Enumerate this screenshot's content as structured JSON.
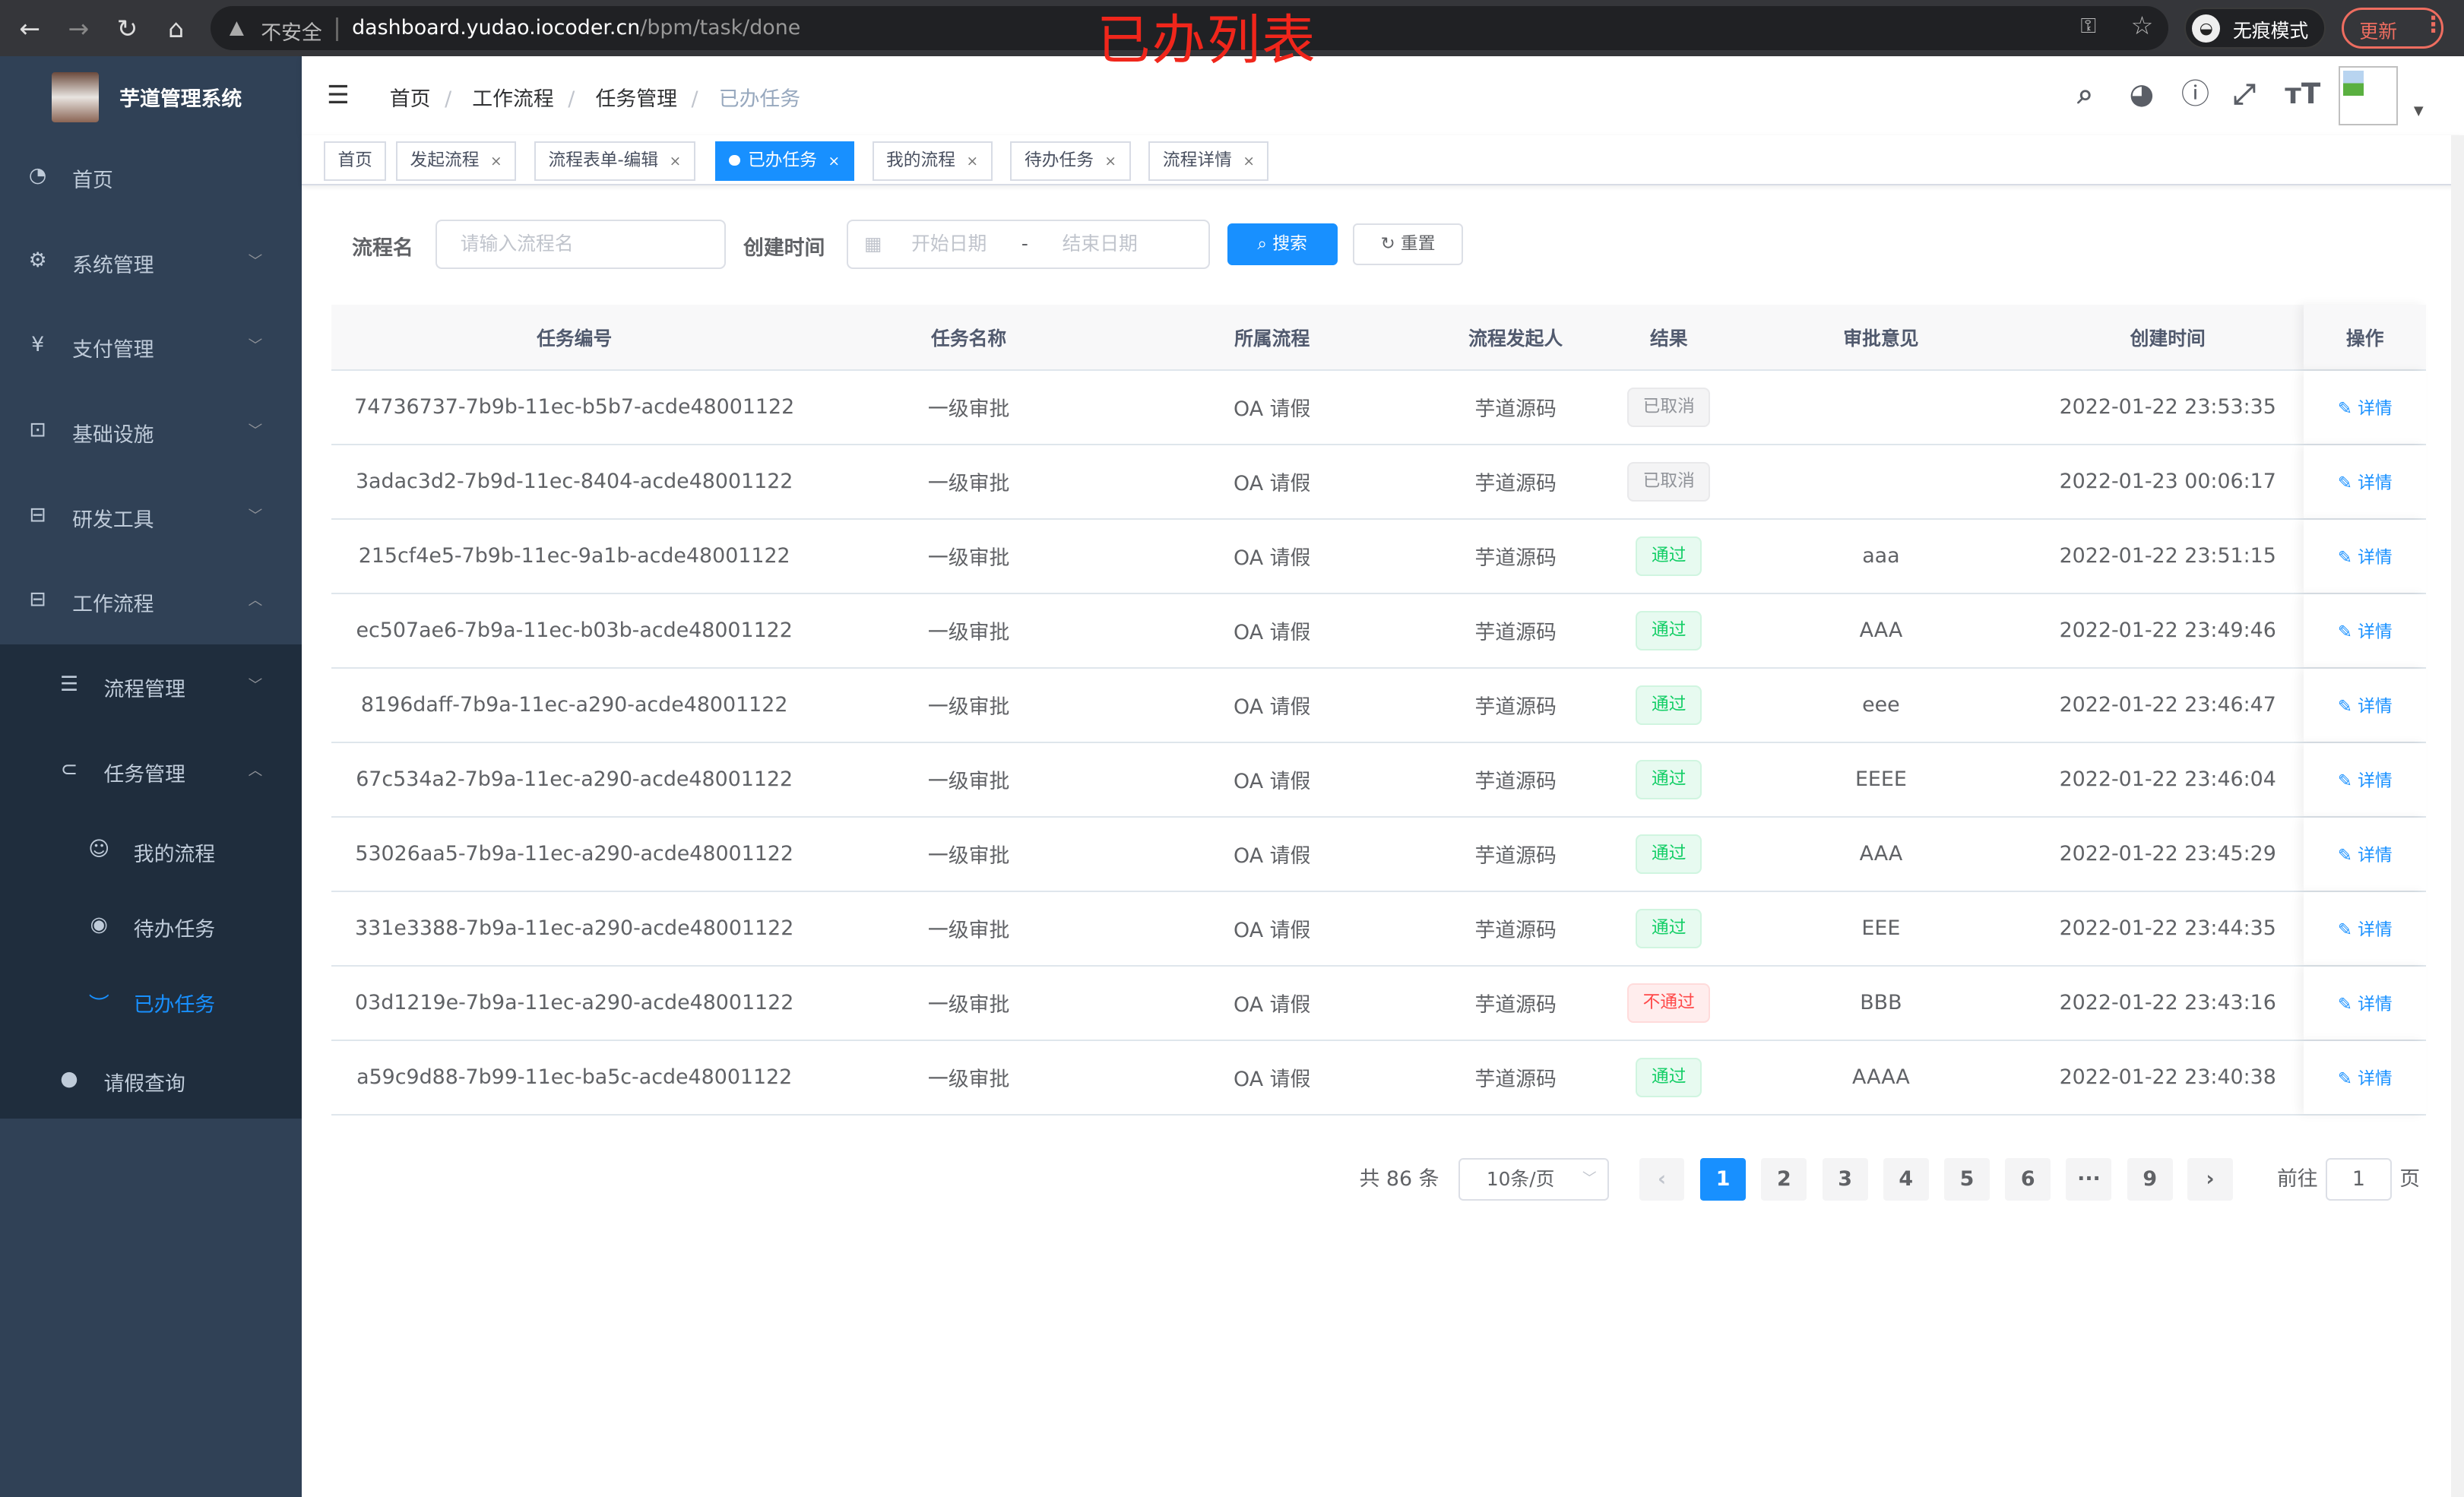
{
  "browser": {
    "insecure_label": "不安全",
    "url_host": "dashboard.yudao.iocoder.cn",
    "url_path": "/bpm/task/done",
    "incognito_label": "无痕模式",
    "update_label": "更新"
  },
  "annotation_title": "已办列表",
  "app": {
    "title": "芋道管理系统"
  },
  "sidebar": {
    "items": [
      {
        "label": "首页",
        "icon": "dashboard-icon",
        "glyph": "◔"
      },
      {
        "label": "系统管理",
        "icon": "gear-icon",
        "glyph": "⚙",
        "arrow": "﹀"
      },
      {
        "label": "支付管理",
        "icon": "yen-icon",
        "glyph": "¥",
        "arrow": "﹀"
      },
      {
        "label": "基础设施",
        "icon": "monitor-icon",
        "glyph": "⊡",
        "arrow": "﹀"
      },
      {
        "label": "研发工具",
        "icon": "toolbox-icon",
        "glyph": "⊟",
        "arrow": "﹀"
      },
      {
        "label": "工作流程",
        "icon": "toolbox-icon",
        "glyph": "⊟",
        "arrow": "︿"
      }
    ],
    "sub_items": [
      {
        "label": "流程管理",
        "icon": "list-icon",
        "glyph": "☰",
        "arrow": "﹀"
      },
      {
        "label": "任务管理",
        "icon": "task-icon",
        "glyph": "⊂",
        "arrow": "︿"
      }
    ],
    "task_items": [
      {
        "label": "我的流程",
        "icon": "people-icon",
        "glyph": "☺"
      },
      {
        "label": "待办任务",
        "icon": "eye-open-icon",
        "glyph": "◉"
      },
      {
        "label": "已办任务",
        "icon": "eye-closed-icon",
        "glyph": "︶",
        "active": true
      }
    ],
    "leave_item": {
      "label": "请假查询",
      "icon": "user-icon",
      "glyph": "●"
    }
  },
  "breadcrumb": [
    "首页",
    "工作流程",
    "任务管理",
    "已办任务"
  ],
  "tags": [
    {
      "label": "首页",
      "closable": false
    },
    {
      "label": "发起流程",
      "closable": true
    },
    {
      "label": "流程表单-编辑",
      "closable": true
    },
    {
      "label": "已办任务",
      "closable": true,
      "active": true
    },
    {
      "label": "我的流程",
      "closable": true
    },
    {
      "label": "待办任务",
      "closable": true
    },
    {
      "label": "流程详情",
      "closable": true
    }
  ],
  "filter": {
    "name_label": "流程名",
    "name_placeholder": "请输入流程名",
    "time_label": "创建时间",
    "start_placeholder": "开始日期",
    "range_separator": "-",
    "end_placeholder": "结束日期",
    "search_label": "搜索",
    "reset_label": "重置"
  },
  "table": {
    "columns": [
      "任务编号",
      "任务名称",
      "所属流程",
      "流程发起人",
      "结果",
      "审批意见",
      "创建时间",
      "操作"
    ],
    "action_label": "详情",
    "rows": [
      {
        "id": "74736737-7b9b-11ec-b5b7-acde48001122",
        "name": "一级审批",
        "process": "OA 请假",
        "starter": "芋道源码",
        "result": "已取消",
        "result_type": "info",
        "comment": "",
        "created": "2022-01-22 23:53:35"
      },
      {
        "id": "3adac3d2-7b9d-11ec-8404-acde48001122",
        "name": "一级审批",
        "process": "OA 请假",
        "starter": "芋道源码",
        "result": "已取消",
        "result_type": "info",
        "comment": "",
        "created": "2022-01-23 00:06:17"
      },
      {
        "id": "215cf4e5-7b9b-11ec-9a1b-acde48001122",
        "name": "一级审批",
        "process": "OA 请假",
        "starter": "芋道源码",
        "result": "通过",
        "result_type": "success",
        "comment": "aaa",
        "created": "2022-01-22 23:51:15"
      },
      {
        "id": "ec507ae6-7b9a-11ec-b03b-acde48001122",
        "name": "一级审批",
        "process": "OA 请假",
        "starter": "芋道源码",
        "result": "通过",
        "result_type": "success",
        "comment": "AAA",
        "created": "2022-01-22 23:49:46"
      },
      {
        "id": "8196daff-7b9a-11ec-a290-acde48001122",
        "name": "一级审批",
        "process": "OA 请假",
        "starter": "芋道源码",
        "result": "通过",
        "result_type": "success",
        "comment": "eee",
        "created": "2022-01-22 23:46:47"
      },
      {
        "id": "67c534a2-7b9a-11ec-a290-acde48001122",
        "name": "一级审批",
        "process": "OA 请假",
        "starter": "芋道源码",
        "result": "通过",
        "result_type": "success",
        "comment": "EEEE",
        "created": "2022-01-22 23:46:04"
      },
      {
        "id": "53026aa5-7b9a-11ec-a290-acde48001122",
        "name": "一级审批",
        "process": "OA 请假",
        "starter": "芋道源码",
        "result": "通过",
        "result_type": "success",
        "comment": "AAA",
        "created": "2022-01-22 23:45:29"
      },
      {
        "id": "331e3388-7b9a-11ec-a290-acde48001122",
        "name": "一级审批",
        "process": "OA 请假",
        "starter": "芋道源码",
        "result": "通过",
        "result_type": "success",
        "comment": "EEE",
        "created": "2022-01-22 23:44:35"
      },
      {
        "id": "03d1219e-7b9a-11ec-a290-acde48001122",
        "name": "一级审批",
        "process": "OA 请假",
        "starter": "芋道源码",
        "result": "不通过",
        "result_type": "danger",
        "comment": "BBB",
        "created": "2022-01-22 23:43:16"
      },
      {
        "id": "a59c9d88-7b99-11ec-ba5c-acde48001122",
        "name": "一级审批",
        "process": "OA 请假",
        "starter": "芋道源码",
        "result": "通过",
        "result_type": "success",
        "comment": "AAAA",
        "created": "2022-01-22 23:40:38"
      }
    ]
  },
  "pagination": {
    "total_label": "共 86 条",
    "page_size": "10条/页",
    "pages": [
      "1",
      "2",
      "3",
      "4",
      "5",
      "6",
      "···",
      "9"
    ],
    "current_page": "1",
    "goto_label": "前往",
    "goto_value": "1",
    "page_suffix": "页"
  },
  "colors": {
    "primary": "#1890ff",
    "sidebar_bg": "#304156",
    "submenu_bg": "#1f2d3d",
    "success": "#13ce66",
    "info": "#909399",
    "danger": "#ff4949",
    "annotation": "#f0261b"
  }
}
